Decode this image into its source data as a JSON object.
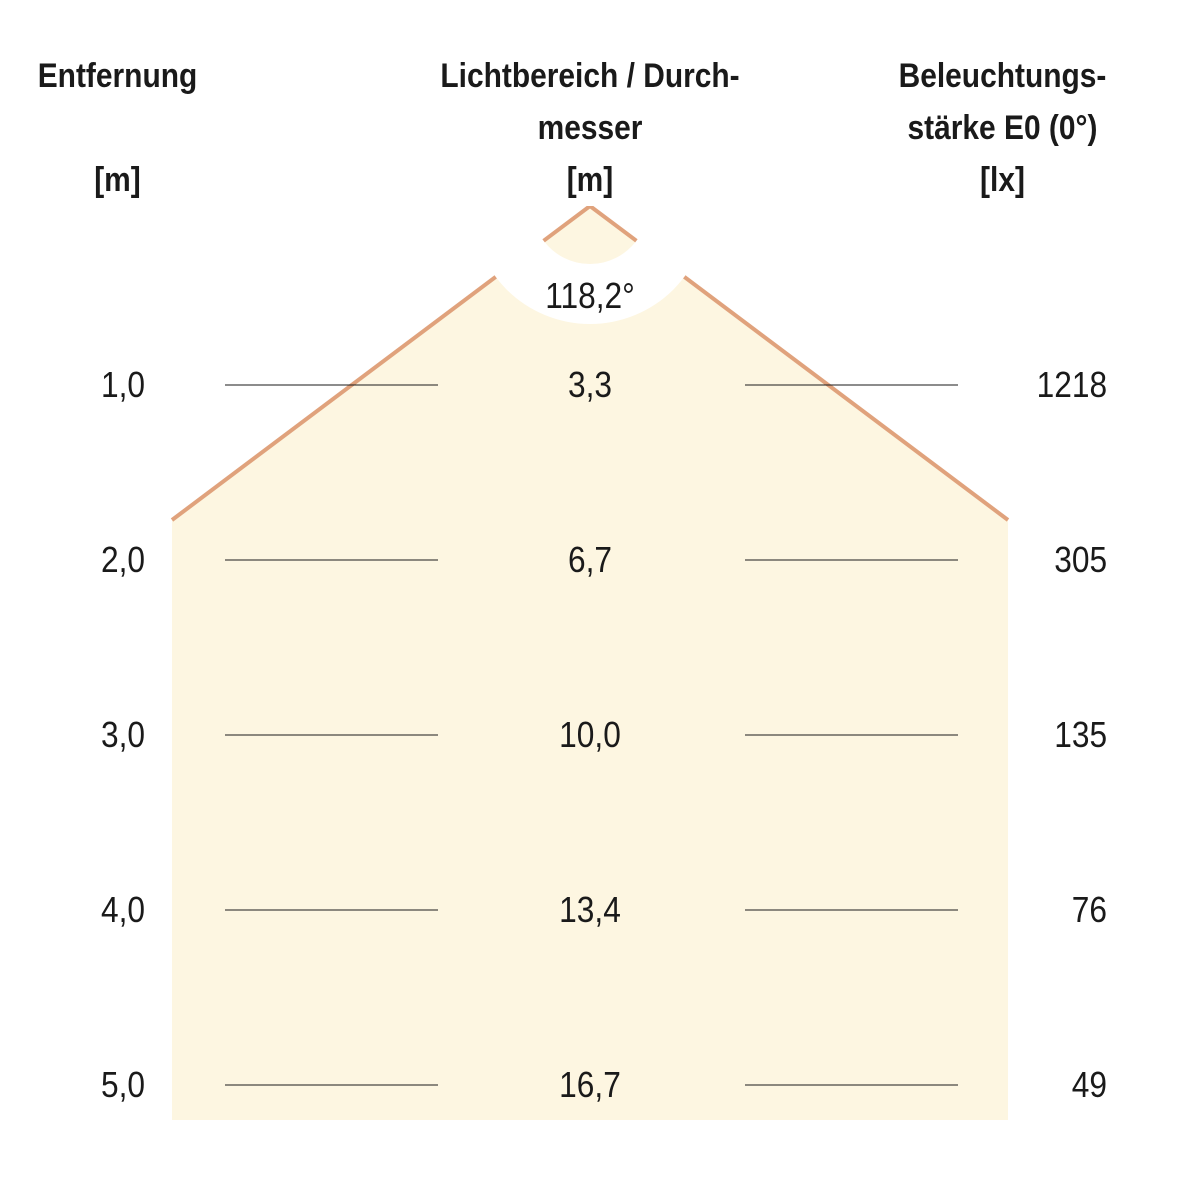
{
  "headers": {
    "distance": [
      "Entfernung",
      "",
      "[m]"
    ],
    "diameter": [
      "Lichtbereich / Durch-",
      "messer",
      "[m]"
    ],
    "illuminance": [
      "Beleuchtungs-",
      "stärke E0 (0°)",
      "[lx]"
    ]
  },
  "beam_angle": "118,2°",
  "colors": {
    "fill": "#fdf6e1",
    "stroke": "#e0a27c",
    "rule": "#1a1a1a"
  },
  "rows": [
    {
      "distance": "1,0",
      "diameter": "3,3",
      "illuminance": "1218"
    },
    {
      "distance": "2,0",
      "diameter": "6,7",
      "illuminance": "305"
    },
    {
      "distance": "3,0",
      "diameter": "10,0",
      "illuminance": "135"
    },
    {
      "distance": "4,0",
      "diameter": "13,4",
      "illuminance": "76"
    },
    {
      "distance": "5,0",
      "diameter": "16,7",
      "illuminance": "49"
    }
  ]
}
